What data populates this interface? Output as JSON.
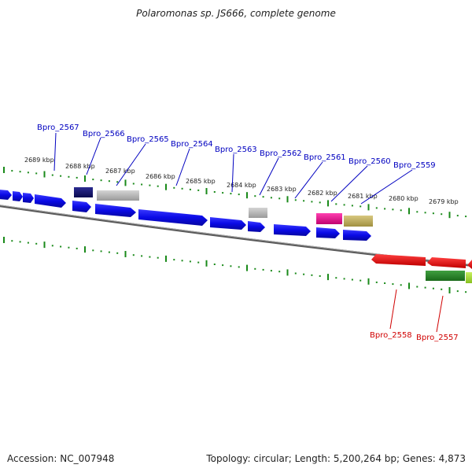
{
  "title": "Polaromonas sp. JS666, complete genome",
  "footer": {
    "accession": "Accession: NC_007948",
    "summary": "Topology: circular; Length: 5,200,264 bp; Genes: 4,873"
  },
  "colors": {
    "blue_gene": "#1010e0",
    "navy_gene": "#101070",
    "gray_gene": "#b4b4b4",
    "magenta_gene": "#e81890",
    "olive_gene": "#c0b060",
    "red_gene": "#e81010",
    "green_gene": "#2a8a2a",
    "lime_gene": "#a8e030",
    "backbone": "#777777",
    "tick": "#1a8a1a",
    "label_forward": "#0000c0",
    "label_reverse": "#d00000"
  },
  "ruler_labels": [
    "2689 kbp",
    "2688 kbp",
    "2687 kbp",
    "2686 kbp",
    "2685 kbp",
    "2684 kbp",
    "2683 kbp",
    "2682 kbp",
    "2681 kbp",
    "2680 kbp",
    "2679 kbp"
  ],
  "gene_labels_forward": [
    "Bpro_2567",
    "Bpro_2566",
    "Bpro_2565",
    "Bpro_2564",
    "Bpro_2563",
    "Bpro_2562",
    "Bpro_2561",
    "Bpro_2560",
    "Bpro_2559"
  ],
  "gene_labels_reverse": [
    "Bpro_2558",
    "Bpro_2557"
  ]
}
